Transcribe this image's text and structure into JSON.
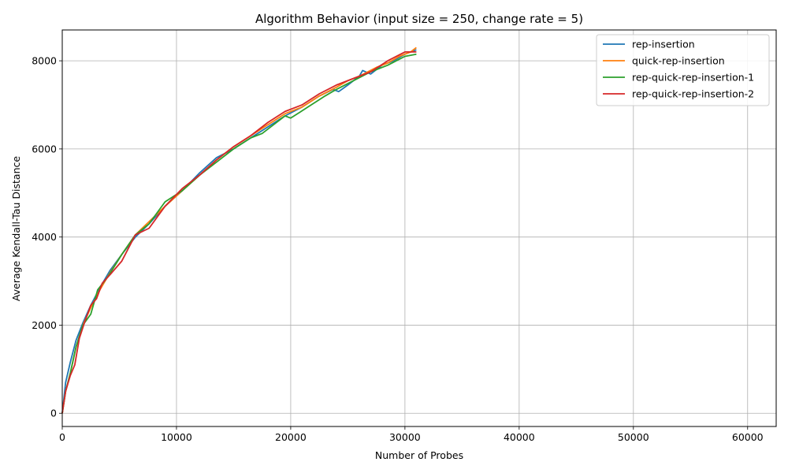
{
  "chart_data": {
    "type": "line",
    "title": "Algorithm Behavior (input size = 250, change rate = 5)",
    "xlabel": "Number of Probes",
    "ylabel": "Average Kendall-Tau Distance",
    "xlim": [
      0,
      62500
    ],
    "ylim": [
      -300,
      8700
    ],
    "xticks": [
      0,
      10000,
      20000,
      30000,
      40000,
      50000,
      60000
    ],
    "yticks": [
      0,
      2000,
      4000,
      6000,
      8000
    ],
    "grid": true,
    "legend_position": "top-right",
    "series": [
      {
        "name": "rep-insertion",
        "color": "#1f77b4",
        "x": [
          0,
          300,
          700,
          1200,
          1800,
          2500,
          3300,
          4200,
          5200,
          6400,
          7600,
          9000,
          10500,
          12000,
          13500,
          15000,
          16500,
          18000,
          19500,
          21000,
          22500,
          23700,
          24200,
          25000,
          26000,
          26300,
          27000,
          28000,
          29000,
          30000,
          31000
        ],
        "y": [
          0,
          700,
          1150,
          1650,
          2050,
          2450,
          2850,
          3250,
          3600,
          4000,
          4300,
          4700,
          5050,
          5450,
          5800,
          6000,
          6250,
          6500,
          6750,
          6950,
          7200,
          7350,
          7300,
          7450,
          7650,
          7780,
          7700,
          7900,
          8000,
          8150,
          8250
        ]
      },
      {
        "name": "quick-rep-insertion",
        "color": "#ff7f0e",
        "x": [
          0,
          300,
          700,
          1200,
          1800,
          2500,
          3300,
          4200,
          5200,
          6400,
          7600,
          9000,
          10500,
          12000,
          13500,
          15000,
          16500,
          18000,
          19500,
          21000,
          22500,
          24000,
          25000,
          26000,
          27500,
          28500,
          29500,
          30500,
          31000
        ],
        "y": [
          0,
          500,
          900,
          1500,
          2000,
          2400,
          2800,
          3200,
          3600,
          4050,
          4350,
          4700,
          5050,
          5400,
          5750,
          6050,
          6300,
          6550,
          6800,
          6950,
          7200,
          7400,
          7550,
          7650,
          7850,
          7950,
          8100,
          8200,
          8300
        ]
      },
      {
        "name": "rep-quick-rep-insertion-1",
        "color": "#2ca02c",
        "x": [
          0,
          300,
          700,
          1200,
          1800,
          2500,
          3100,
          4000,
          5200,
          6400,
          7600,
          9000,
          10500,
          12000,
          13500,
          15000,
          16500,
          17500,
          18500,
          19500,
          20000,
          21500,
          23000,
          24000,
          25500,
          27000,
          28500,
          30000,
          31000
        ],
        "y": [
          0,
          500,
          900,
          1500,
          2000,
          2250,
          2800,
          3100,
          3600,
          4050,
          4300,
          4800,
          5050,
          5400,
          5700,
          6000,
          6250,
          6350,
          6550,
          6750,
          6700,
          6950,
          7200,
          7350,
          7550,
          7750,
          7900,
          8100,
          8150
        ]
      },
      {
        "name": "rep-quick-rep-insertion-2",
        "color": "#d62728",
        "x": [
          0,
          300,
          700,
          1100,
          1500,
          2000,
          2500,
          3000,
          3500,
          4200,
          5200,
          6400,
          7600,
          9000,
          10500,
          12000,
          13500,
          15000,
          16500,
          18000,
          19500,
          21000,
          22500,
          24000,
          25500,
          27000,
          28500,
          30000,
          31000
        ],
        "y": [
          0,
          500,
          850,
          1100,
          1700,
          2100,
          2450,
          2600,
          2950,
          3150,
          3450,
          4050,
          4200,
          4700,
          5100,
          5400,
          5750,
          6050,
          6300,
          6600,
          6850,
          7000,
          7250,
          7450,
          7600,
          7750,
          8000,
          8200,
          8200
        ]
      }
    ]
  }
}
